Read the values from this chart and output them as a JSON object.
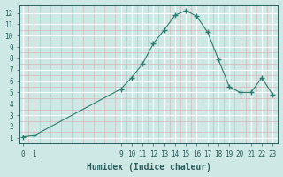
{
  "x": [
    0,
    1,
    9,
    10,
    11,
    12,
    13,
    14,
    15,
    16,
    17,
    18,
    19,
    20,
    21,
    22,
    23
  ],
  "y": [
    1.1,
    1.2,
    5.3,
    6.3,
    7.5,
    9.3,
    10.5,
    11.8,
    12.2,
    11.7,
    10.3,
    7.9,
    5.5,
    5.0,
    5.0,
    6.3,
    4.8
  ],
  "line_color": "#2d7b6e",
  "marker": "+",
  "marker_size": 4,
  "xlabel": "Humidex (Indice chaleur)",
  "xlim": [
    -0.3,
    23.5
  ],
  "ylim": [
    0.5,
    12.7
  ],
  "xticks": [
    0,
    1,
    9,
    10,
    11,
    12,
    13,
    14,
    15,
    16,
    17,
    18,
    19,
    20,
    21,
    22,
    23
  ],
  "yticks": [
    1,
    2,
    3,
    4,
    5,
    6,
    7,
    8,
    9,
    10,
    11,
    12
  ],
  "bg_color": "#cde8e5",
  "major_grid_color": "#ffffff",
  "minor_grid_color": "#d4b8b8",
  "text_color": "#2d5c5c",
  "font_family": "monospace",
  "tick_fontsize": 5.5,
  "xlabel_fontsize": 7.0
}
